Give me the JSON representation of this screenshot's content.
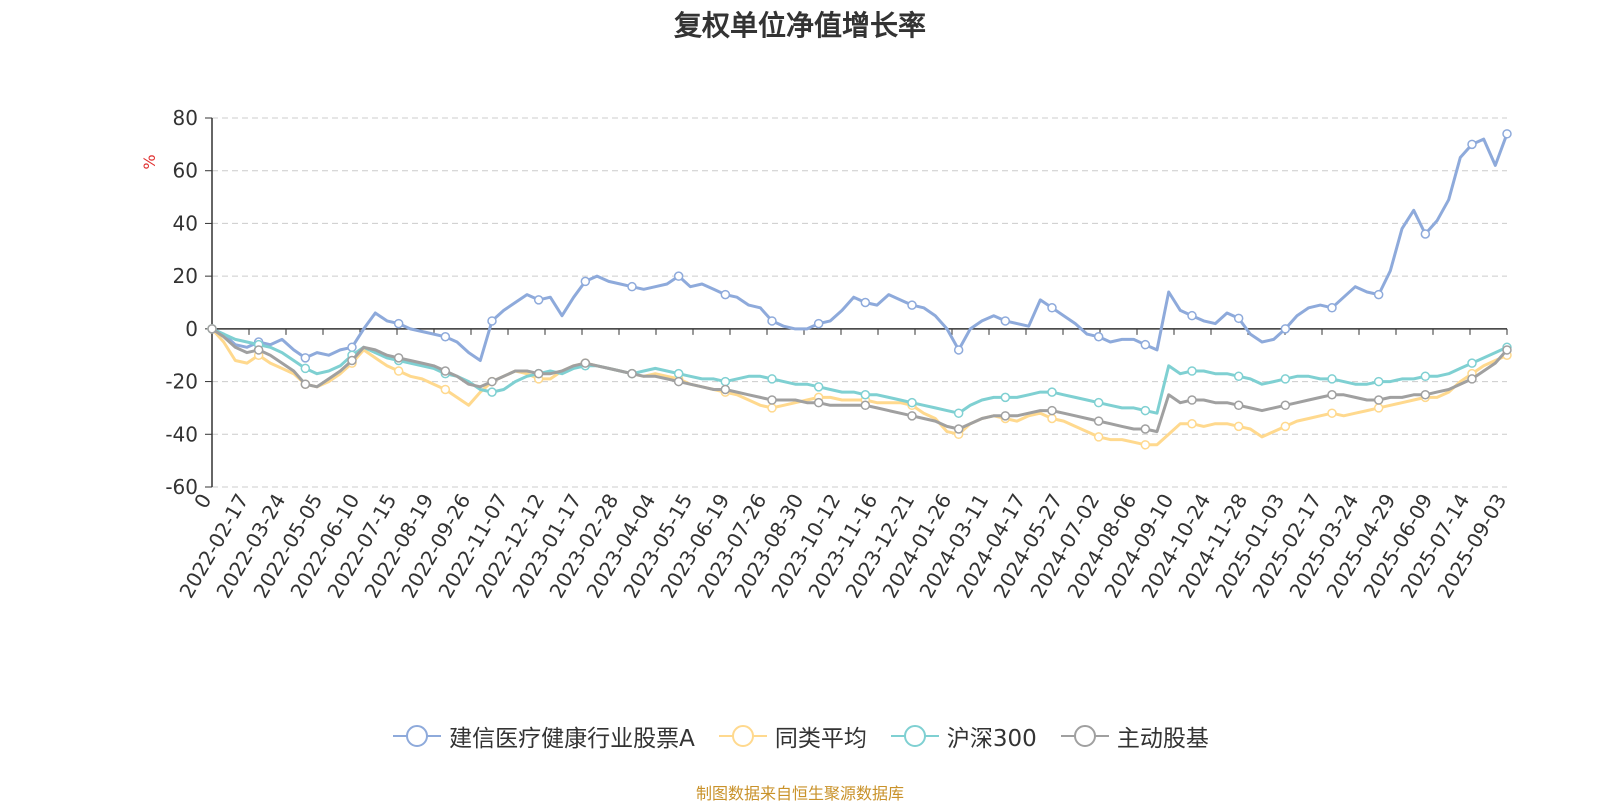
{
  "chart_data": {
    "type": "line",
    "title": "复权单位净值增长率",
    "ylabel": "%",
    "ylim": [
      -60,
      80
    ],
    "yticks": [
      -60,
      -40,
      -20,
      0,
      20,
      40,
      60,
      80
    ],
    "xtick_labels": [
      "0",
      "2022-02-17",
      "2022-03-24",
      "2022-05-05",
      "2022-06-10",
      "2022-07-15",
      "2022-08-19",
      "2022-09-26",
      "2022-11-07",
      "2022-12-12",
      "2023-01-17",
      "2023-02-28",
      "2023-04-04",
      "2023-05-15",
      "2023-06-19",
      "2023-07-26",
      "2023-08-30",
      "2023-10-12",
      "2023-11-16",
      "2023-12-21",
      "2024-01-26",
      "2024-03-11",
      "2024-04-17",
      "2024-05-27",
      "2024-07-02",
      "2024-08-06",
      "2024-09-10",
      "2024-10-24",
      "2024-11-28",
      "2025-01-03",
      "2025-02-17",
      "2025-03-24",
      "2025-04-29",
      "2025-06-09",
      "2025-07-14",
      "2025-09-03"
    ],
    "grid": true,
    "legend_position": "bottom",
    "source_note": "制图数据来自恒生聚源数据库",
    "series": [
      {
        "name": "建信医疗健康行业股票A",
        "color": "#8eaadb",
        "values": [
          0,
          -2,
          -6,
          -7,
          -5,
          -6,
          -4,
          -8,
          -11,
          -9,
          -10,
          -8,
          -7,
          0,
          6,
          3,
          2,
          0,
          -1,
          -2,
          -3,
          -5,
          -9,
          -12,
          3,
          7,
          10,
          13,
          11,
          12,
          5,
          12,
          18,
          20,
          18,
          17,
          16,
          15,
          16,
          17,
          20,
          16,
          17,
          15,
          13,
          12,
          9,
          8,
          3,
          1,
          0,
          0,
          2,
          3,
          7,
          12,
          10,
          9,
          13,
          11,
          9,
          8,
          5,
          0,
          -8,
          0,
          3,
          5,
          3,
          2,
          1,
          11,
          8,
          5,
          2,
          -2,
          -3,
          -5,
          -4,
          -4,
          -6,
          -8,
          14,
          7,
          5,
          3,
          2,
          6,
          4,
          -2,
          -5,
          -4,
          0,
          5,
          8,
          9,
          8,
          12,
          16,
          14,
          13,
          22,
          38,
          45,
          36,
          41,
          49,
          65,
          70,
          72,
          62,
          74
        ]
      },
      {
        "name": "同类平均",
        "color": "#ffd98e",
        "values": [
          0,
          -5,
          -12,
          -13,
          -10,
          -13,
          -15,
          -17,
          -21,
          -22,
          -20,
          -17,
          -13,
          -8,
          -11,
          -14,
          -16,
          -18,
          -19,
          -21,
          -23,
          -26,
          -29,
          -24,
          -20,
          -18,
          -16,
          -17,
          -19,
          -19,
          -16,
          -14,
          -13,
          -14,
          -15,
          -16,
          -17,
          -18,
          -17,
          -18,
          -19,
          -21,
          -22,
          -23,
          -24,
          -25,
          -27,
          -29,
          -30,
          -29,
          -28,
          -27,
          -26,
          -26,
          -27,
          -27,
          -27,
          -28,
          -28,
          -28,
          -29,
          -32,
          -34,
          -39,
          -40,
          -36,
          -34,
          -33,
          -34,
          -35,
          -33,
          -32,
          -34,
          -35,
          -37,
          -39,
          -41,
          -42,
          -42,
          -43,
          -44,
          -44,
          -40,
          -36,
          -36,
          -37,
          -36,
          -36,
          -37,
          -38,
          -41,
          -39,
          -37,
          -35,
          -34,
          -33,
          -32,
          -33,
          -32,
          -31,
          -30,
          -29,
          -28,
          -27,
          -26,
          -26,
          -24,
          -20,
          -17,
          -14,
          -12,
          -10
        ]
      },
      {
        "name": "沪深300",
        "color": "#7fd0d2",
        "values": [
          0,
          -2,
          -4,
          -5,
          -6,
          -7,
          -9,
          -12,
          -15,
          -17,
          -16,
          -14,
          -10,
          -7,
          -9,
          -11,
          -12,
          -13,
          -14,
          -15,
          -17,
          -18,
          -20,
          -23,
          -24,
          -23,
          -20,
          -18,
          -17,
          -16,
          -17,
          -15,
          -14,
          -14,
          -15,
          -16,
          -17,
          -16,
          -15,
          -16,
          -17,
          -18,
          -19,
          -19,
          -20,
          -19,
          -18,
          -18,
          -19,
          -20,
          -21,
          -21,
          -22,
          -23,
          -24,
          -24,
          -25,
          -25,
          -26,
          -27,
          -28,
          -29,
          -30,
          -31,
          -32,
          -29,
          -27,
          -26,
          -26,
          -26,
          -25,
          -24,
          -24,
          -25,
          -26,
          -27,
          -28,
          -29,
          -30,
          -30,
          -31,
          -32,
          -14,
          -17,
          -16,
          -16,
          -17,
          -17,
          -18,
          -19,
          -21,
          -20,
          -19,
          -18,
          -18,
          -19,
          -19,
          -20,
          -21,
          -21,
          -20,
          -20,
          -19,
          -19,
          -18,
          -18,
          -17,
          -15,
          -13,
          -11,
          -9,
          -7
        ]
      },
      {
        "name": "主动股基",
        "color": "#a0a0a0",
        "values": [
          0,
          -3,
          -7,
          -9,
          -8,
          -10,
          -13,
          -16,
          -21,
          -22,
          -19,
          -16,
          -12,
          -7,
          -8,
          -10,
          -11,
          -12,
          -13,
          -14,
          -16,
          -18,
          -21,
          -22,
          -20,
          -18,
          -16,
          -16,
          -17,
          -17,
          -16,
          -14,
          -13,
          -14,
          -15,
          -16,
          -17,
          -18,
          -18,
          -19,
          -20,
          -21,
          -22,
          -23,
          -23,
          -24,
          -25,
          -26,
          -27,
          -27,
          -27,
          -28,
          -28,
          -29,
          -29,
          -29,
          -29,
          -30,
          -31,
          -32,
          -33,
          -34,
          -35,
          -37,
          -38,
          -36,
          -34,
          -33,
          -33,
          -33,
          -32,
          -31,
          -31,
          -32,
          -33,
          -34,
          -35,
          -36,
          -37,
          -38,
          -38,
          -39,
          -25,
          -28,
          -27,
          -27,
          -28,
          -28,
          -29,
          -30,
          -31,
          -30,
          -29,
          -28,
          -27,
          -26,
          -25,
          -25,
          -26,
          -27,
          -27,
          -26,
          -26,
          -25,
          -25,
          -24,
          -23,
          -21,
          -19,
          -16,
          -13,
          -8
        ]
      }
    ]
  }
}
